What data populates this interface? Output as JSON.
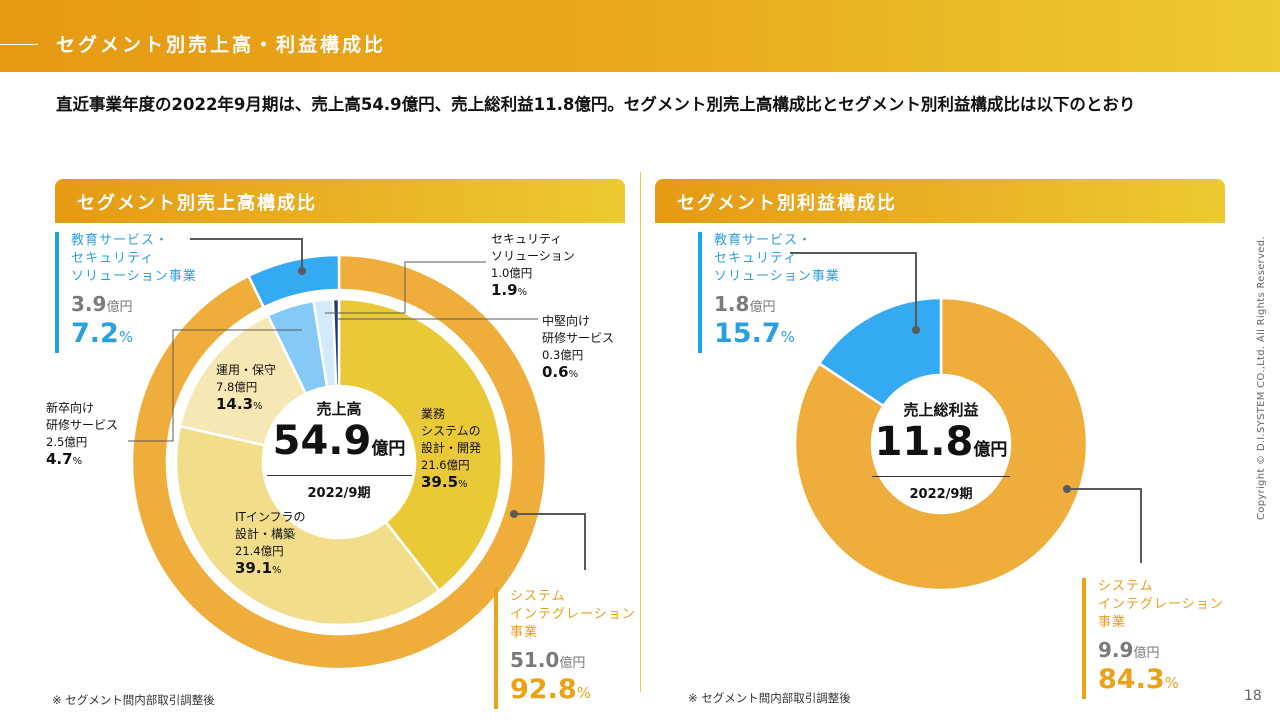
{
  "header": {
    "title": "セグメント別売上高・利益構成比"
  },
  "lead_text": "直近事業年度の2022年9月期は、売上高54.9億円、売上総利益11.8億円。セグメント別売上高構成比とセグメント別利益構成比は以下のとおり",
  "colors": {
    "orange": "#EFAE3C",
    "blue": "#33AAF2",
    "light_blue": "#85C9F6",
    "pale_blue": "#D3EAFB",
    "navy": "#1F3E78",
    "yellow": "#E9C935",
    "pale_yellow": "#F2DE8A",
    "cream": "#F5E8B4",
    "connector": "#5a5a5a"
  },
  "sales_panel": {
    "title": "セグメント別売上高構成比",
    "center": {
      "title": "売上高",
      "value": "54.9",
      "unit": "億円",
      "period": "2022/9期"
    },
    "segments": [
      {
        "name": "教育サービス・\nセキュリティ\nソリューション事業",
        "amount": "3.9",
        "unit": "億円",
        "pct": "7.2",
        "pct_unit": "%"
      },
      {
        "name": "システム\nインテグレーション\n事業",
        "amount": "51.0",
        "unit": "億円",
        "pct": "92.8",
        "pct_unit": "%"
      }
    ],
    "details": [
      {
        "name": "業務\nシステムの\n設計・開発",
        "amount": "21.6億円",
        "pct": "39.5",
        "pct_unit": "%"
      },
      {
        "name": "ITインフラの\n設計・構築",
        "amount": "21.4億円",
        "pct": "39.1",
        "pct_unit": "%"
      },
      {
        "name": "運用・保守",
        "amount": "7.8億円",
        "pct": "14.3",
        "pct_unit": "%"
      },
      {
        "name": "新卒向け\n研修サービス",
        "amount": "2.5億円",
        "pct": "4.7",
        "pct_unit": "%"
      },
      {
        "name": "セキュリティ\nソリューション",
        "amount": "1.0億円",
        "pct": "1.9",
        "pct_unit": "%"
      },
      {
        "name": "中堅向け\n研修サービス",
        "amount": "0.3億円",
        "pct": "0.6",
        "pct_unit": "%"
      }
    ],
    "note": "※ セグメント間内部取引調整後"
  },
  "profit_panel": {
    "title": "セグメント別利益構成比",
    "center": {
      "title": "売上総利益",
      "value": "11.8",
      "unit": "億円",
      "period": "2022/9期"
    },
    "segments": [
      {
        "name": "教育サービス・\nセキュリティ\nソリューション事業",
        "amount": "1.8",
        "unit": "億円",
        "pct": "15.7",
        "pct_unit": "%"
      },
      {
        "name": "システム\nインテグレーション\n事業",
        "amount": "9.9",
        "unit": "億円",
        "pct": "84.3",
        "pct_unit": "%"
      }
    ],
    "note": "※ セグメント間内部取引調整後"
  },
  "footer": {
    "page": "18",
    "copyright": "Copyright © D.I.SYSTEM CO.,Ltd. All Rights Reserved."
  },
  "chart_data": [
    {
      "type": "pie",
      "title": "セグメント別売上高構成比",
      "total": 54.9,
      "unit": "億円",
      "period": "2022/9期",
      "outer_ring": {
        "categories": [
          "システムインテグレーション事業",
          "教育サービス・セキュリティソリューション事業"
        ],
        "values": [
          92.8,
          7.2
        ],
        "amounts": [
          51.0,
          3.9
        ],
        "colors": [
          "#EFAE3C",
          "#33AAF2"
        ]
      },
      "inner_ring": {
        "categories": [
          "業務システムの設計・開発",
          "ITインフラの設計・構築",
          "運用・保守",
          "新卒向け研修サービス",
          "セキュリティソリューション",
          "中堅向け研修サービス"
        ],
        "values": [
          39.5,
          39.1,
          14.3,
          4.7,
          1.9,
          0.6
        ],
        "amounts": [
          21.6,
          21.4,
          7.8,
          2.5,
          1.0,
          0.3
        ],
        "colors": [
          "#E9C935",
          "#F2DE8A",
          "#F5E8B4",
          "#85C9F6",
          "#D3EAFB",
          "#1F3E78"
        ]
      },
      "start": "12 o'clock",
      "direction": "clockwise"
    },
    {
      "type": "pie",
      "title": "セグメント別利益構成比",
      "total": 11.8,
      "unit": "億円",
      "period": "2022/9期",
      "categories": [
        "システムインテグレーション事業",
        "教育サービス・セキュリティソリューション事業"
      ],
      "values": [
        84.3,
        15.7
      ],
      "amounts": [
        9.9,
        1.8
      ],
      "colors": [
        "#EFAE3C",
        "#33AAF2"
      ],
      "start": "12 o'clock",
      "direction": "clockwise"
    }
  ]
}
